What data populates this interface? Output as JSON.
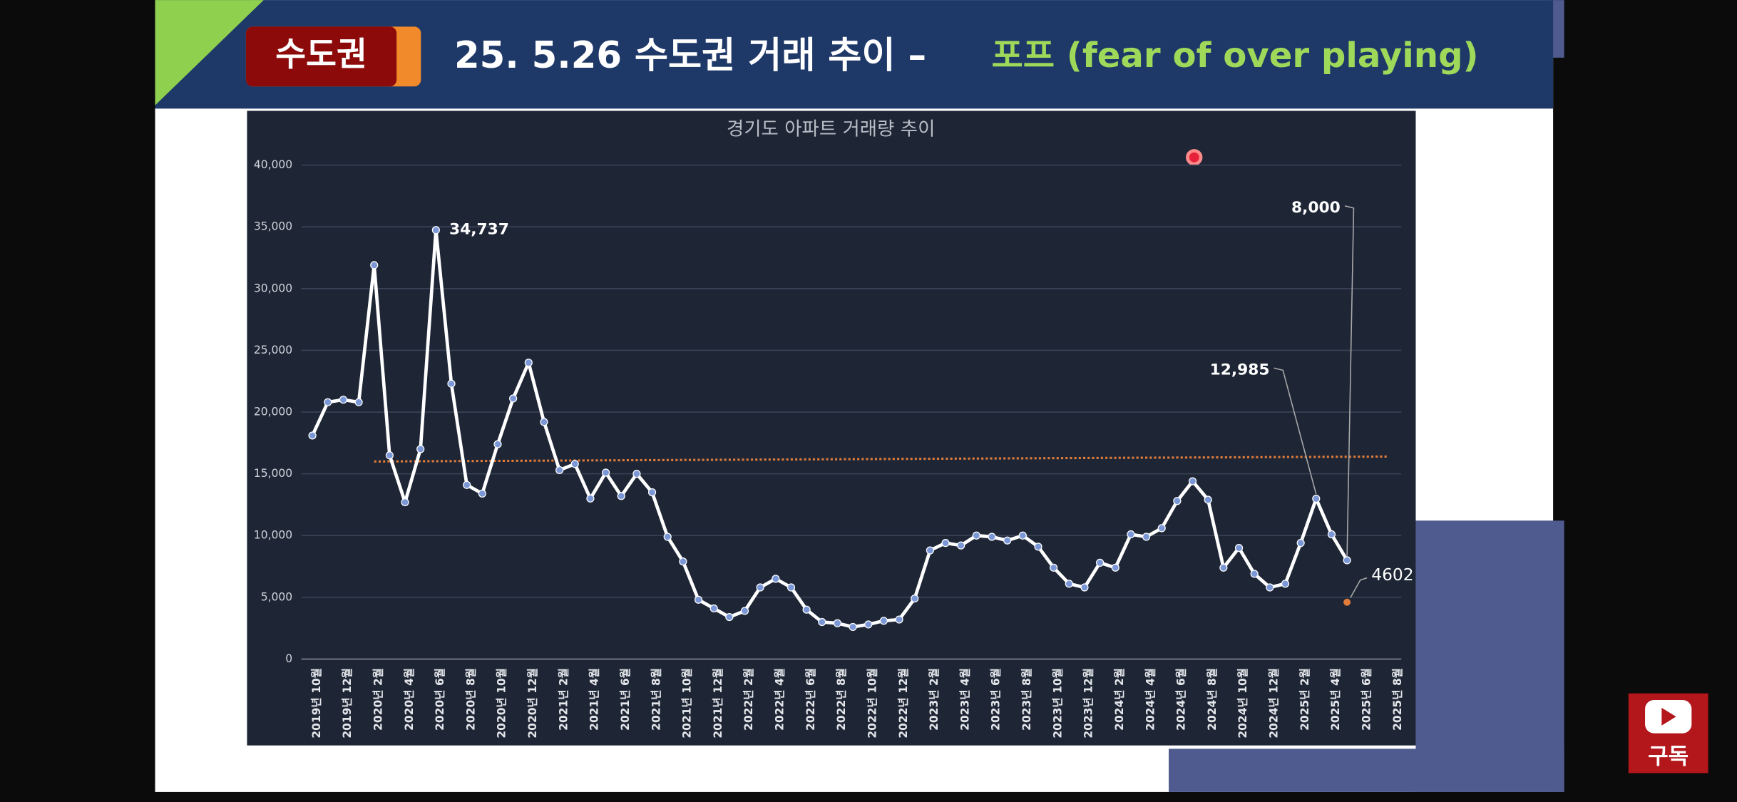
{
  "header": {
    "badge": "수도권",
    "title": "25. 5.26 수도권 거래  추이 –",
    "highlight": "포프 (fear of over playing)"
  },
  "subscribe": "구독",
  "chart_data": {
    "type": "line",
    "title": "경기도 아파트 거래량 추이",
    "categories": [
      "2019년 10월",
      null,
      "2019년 12월",
      null,
      "2020년 2월",
      null,
      "2020년 4월",
      null,
      "2020년 6월",
      null,
      "2020년 8월",
      null,
      "2020년 10월",
      null,
      "2020년 12월",
      null,
      "2021년 2월",
      null,
      "2021년 4월",
      null,
      "2021년 6월",
      null,
      "2021년 8월",
      null,
      "2021년 10월",
      null,
      "2021년 12월",
      null,
      "2022년 2월",
      null,
      "2022년 4월",
      null,
      "2022년 6월",
      null,
      "2022년 8월",
      null,
      "2022년 10월",
      null,
      "2022년 12월",
      null,
      "2023년 2월",
      null,
      "2023년 4월",
      null,
      "2023년 6월",
      null,
      "2023년 8월",
      null,
      "2023년 10월",
      null,
      "2023년 12월",
      null,
      "2024년 2월",
      null,
      "2024년 4월",
      null,
      "2024년 6월",
      null,
      "2024년 8월",
      null,
      "2024년 10월",
      null,
      "2024년 12월",
      null,
      "2025년 2월",
      null,
      "2025년 4월",
      null,
      "2025년 6월",
      null,
      "2025년 8월"
    ],
    "series": [
      {
        "color": "#ffffff",
        "marker_color": "#7b97d6",
        "values": [
          18100,
          20800,
          21000,
          20800,
          31900,
          16500,
          12700,
          17000,
          34737,
          22300,
          14100,
          13400,
          17400,
          21100,
          24000,
          19200,
          15300,
          15800,
          13000,
          15100,
          13200,
          15000,
          13500,
          9900,
          7900,
          4800,
          4100,
          3400,
          3900,
          5800,
          6500,
          5800,
          4000,
          3000,
          2900,
          2600,
          2800,
          3100,
          3200,
          4900,
          8800,
          9400,
          9200,
          10000,
          9900,
          9600,
          10000,
          9100,
          7400,
          6100,
          5800,
          7800,
          7400,
          10100,
          9900,
          10600,
          12800,
          14400,
          12900,
          7400,
          9000,
          6900,
          5800,
          6100,
          9400,
          12985,
          10100,
          8000,
          null,
          null,
          null
        ],
        "value_labels": [
          null,
          null,
          null,
          null,
          null,
          null,
          null,
          null,
          "34,737",
          null,
          null,
          null,
          null,
          null,
          null,
          null,
          null,
          null,
          null,
          null,
          null,
          null,
          null,
          null,
          null,
          null,
          null,
          null,
          null,
          null,
          null,
          null,
          null,
          null,
          null,
          null,
          null,
          null,
          null,
          null,
          null,
          null,
          null,
          null,
          null,
          null,
          null,
          null,
          null,
          null,
          null,
          null,
          null,
          null,
          null,
          null,
          null,
          null,
          null,
          null,
          null,
          null,
          null,
          null,
          null,
          "12,985",
          null,
          "8,000",
          null,
          null,
          null
        ]
      },
      {
        "color": "#e07b39",
        "values": [
          null,
          null,
          null,
          null,
          null,
          null,
          null,
          null,
          null,
          null,
          null,
          null,
          null,
          null,
          null,
          null,
          null,
          null,
          null,
          null,
          null,
          null,
          null,
          null,
          null,
          null,
          null,
          null,
          null,
          null,
          null,
          null,
          null,
          null,
          null,
          null,
          null,
          null,
          null,
          null,
          null,
          null,
          null,
          null,
          null,
          null,
          null,
          null,
          null,
          null,
          null,
          null,
          null,
          null,
          null,
          null,
          null,
          null,
          null,
          null,
          null,
          null,
          null,
          null,
          null,
          null,
          null,
          4602,
          null,
          null,
          null
        ]
      }
    ],
    "trend": {
      "color": "#e07b39",
      "values": [
        16000,
        16400
      ]
    },
    "ylim": [
      0,
      40000
    ],
    "yticks": [
      0,
      {
        "value": 5000,
        "label": "5,000"
      },
      {
        "value": 10000,
        "label": "10,000"
      },
      {
        "value": 15000,
        "label": "15,000"
      },
      {
        "value": 20000,
        "label": "20,000"
      },
      {
        "value": 25000,
        "label": "25,000"
      },
      {
        "value": 30000,
        "label": "30,000"
      },
      {
        "value": 35000,
        "label": "35,000"
      },
      {
        "value": 40000,
        "label": "40,000"
      }
    ],
    "grid": true
  }
}
